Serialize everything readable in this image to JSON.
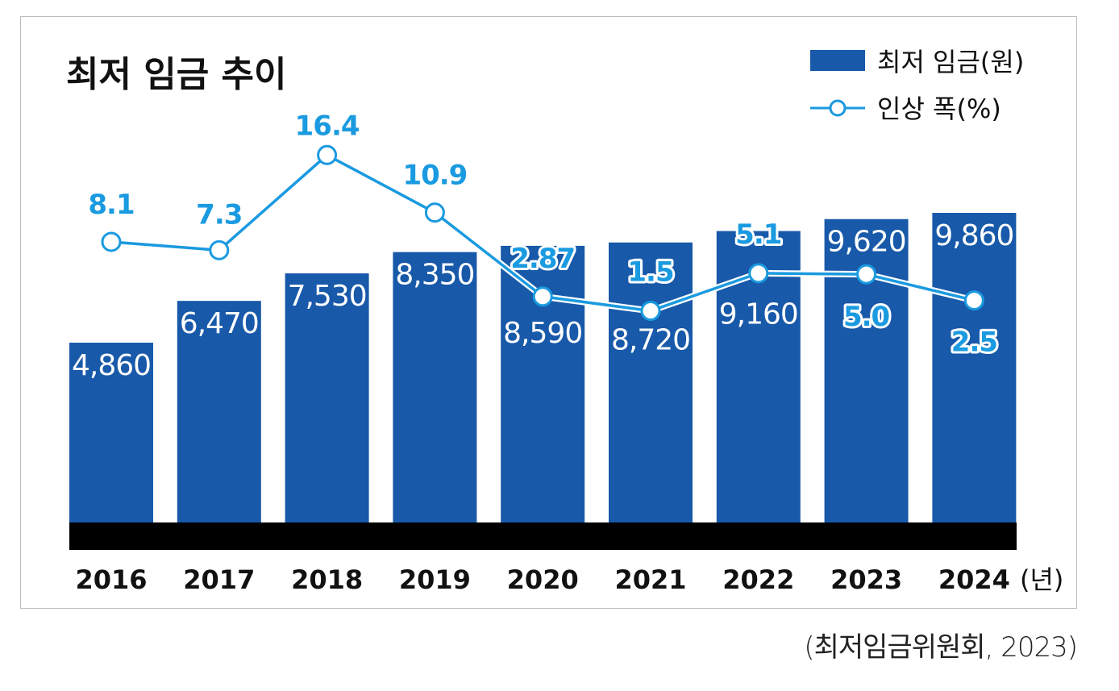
{
  "chart_data": {
    "type": "bar+line",
    "title": "최저 임금 추이",
    "categories": [
      "2016",
      "2017",
      "2018",
      "2019",
      "2020",
      "2021",
      "2022",
      "2023",
      "2024"
    ],
    "x_unit": "(년)",
    "series": [
      {
        "name": "최저 임금(원)",
        "type": "bar",
        "color": "#1859a9",
        "values": [
          4860,
          6470,
          7530,
          8350,
          8590,
          8720,
          9160,
          9620,
          9860
        ],
        "labels": [
          "4,860",
          "6,470",
          "7,530",
          "8,350",
          "8,590",
          "8,720",
          "9,160",
          "9,620",
          "9,860"
        ]
      },
      {
        "name": "인상 폭(%)",
        "type": "line",
        "color": "#1a9ae0",
        "values": [
          8.1,
          7.3,
          16.4,
          10.9,
          2.87,
          1.5,
          5.1,
          5.0,
          2.5
        ],
        "labels": [
          "8.1",
          "7.3",
          "16.4",
          "10.9",
          "2.87",
          "1.5",
          "5.1",
          "5.0",
          "2.5"
        ]
      }
    ],
    "legend_position": "top-right",
    "grid": false,
    "source": "(최저임금위원회, 2023)"
  }
}
